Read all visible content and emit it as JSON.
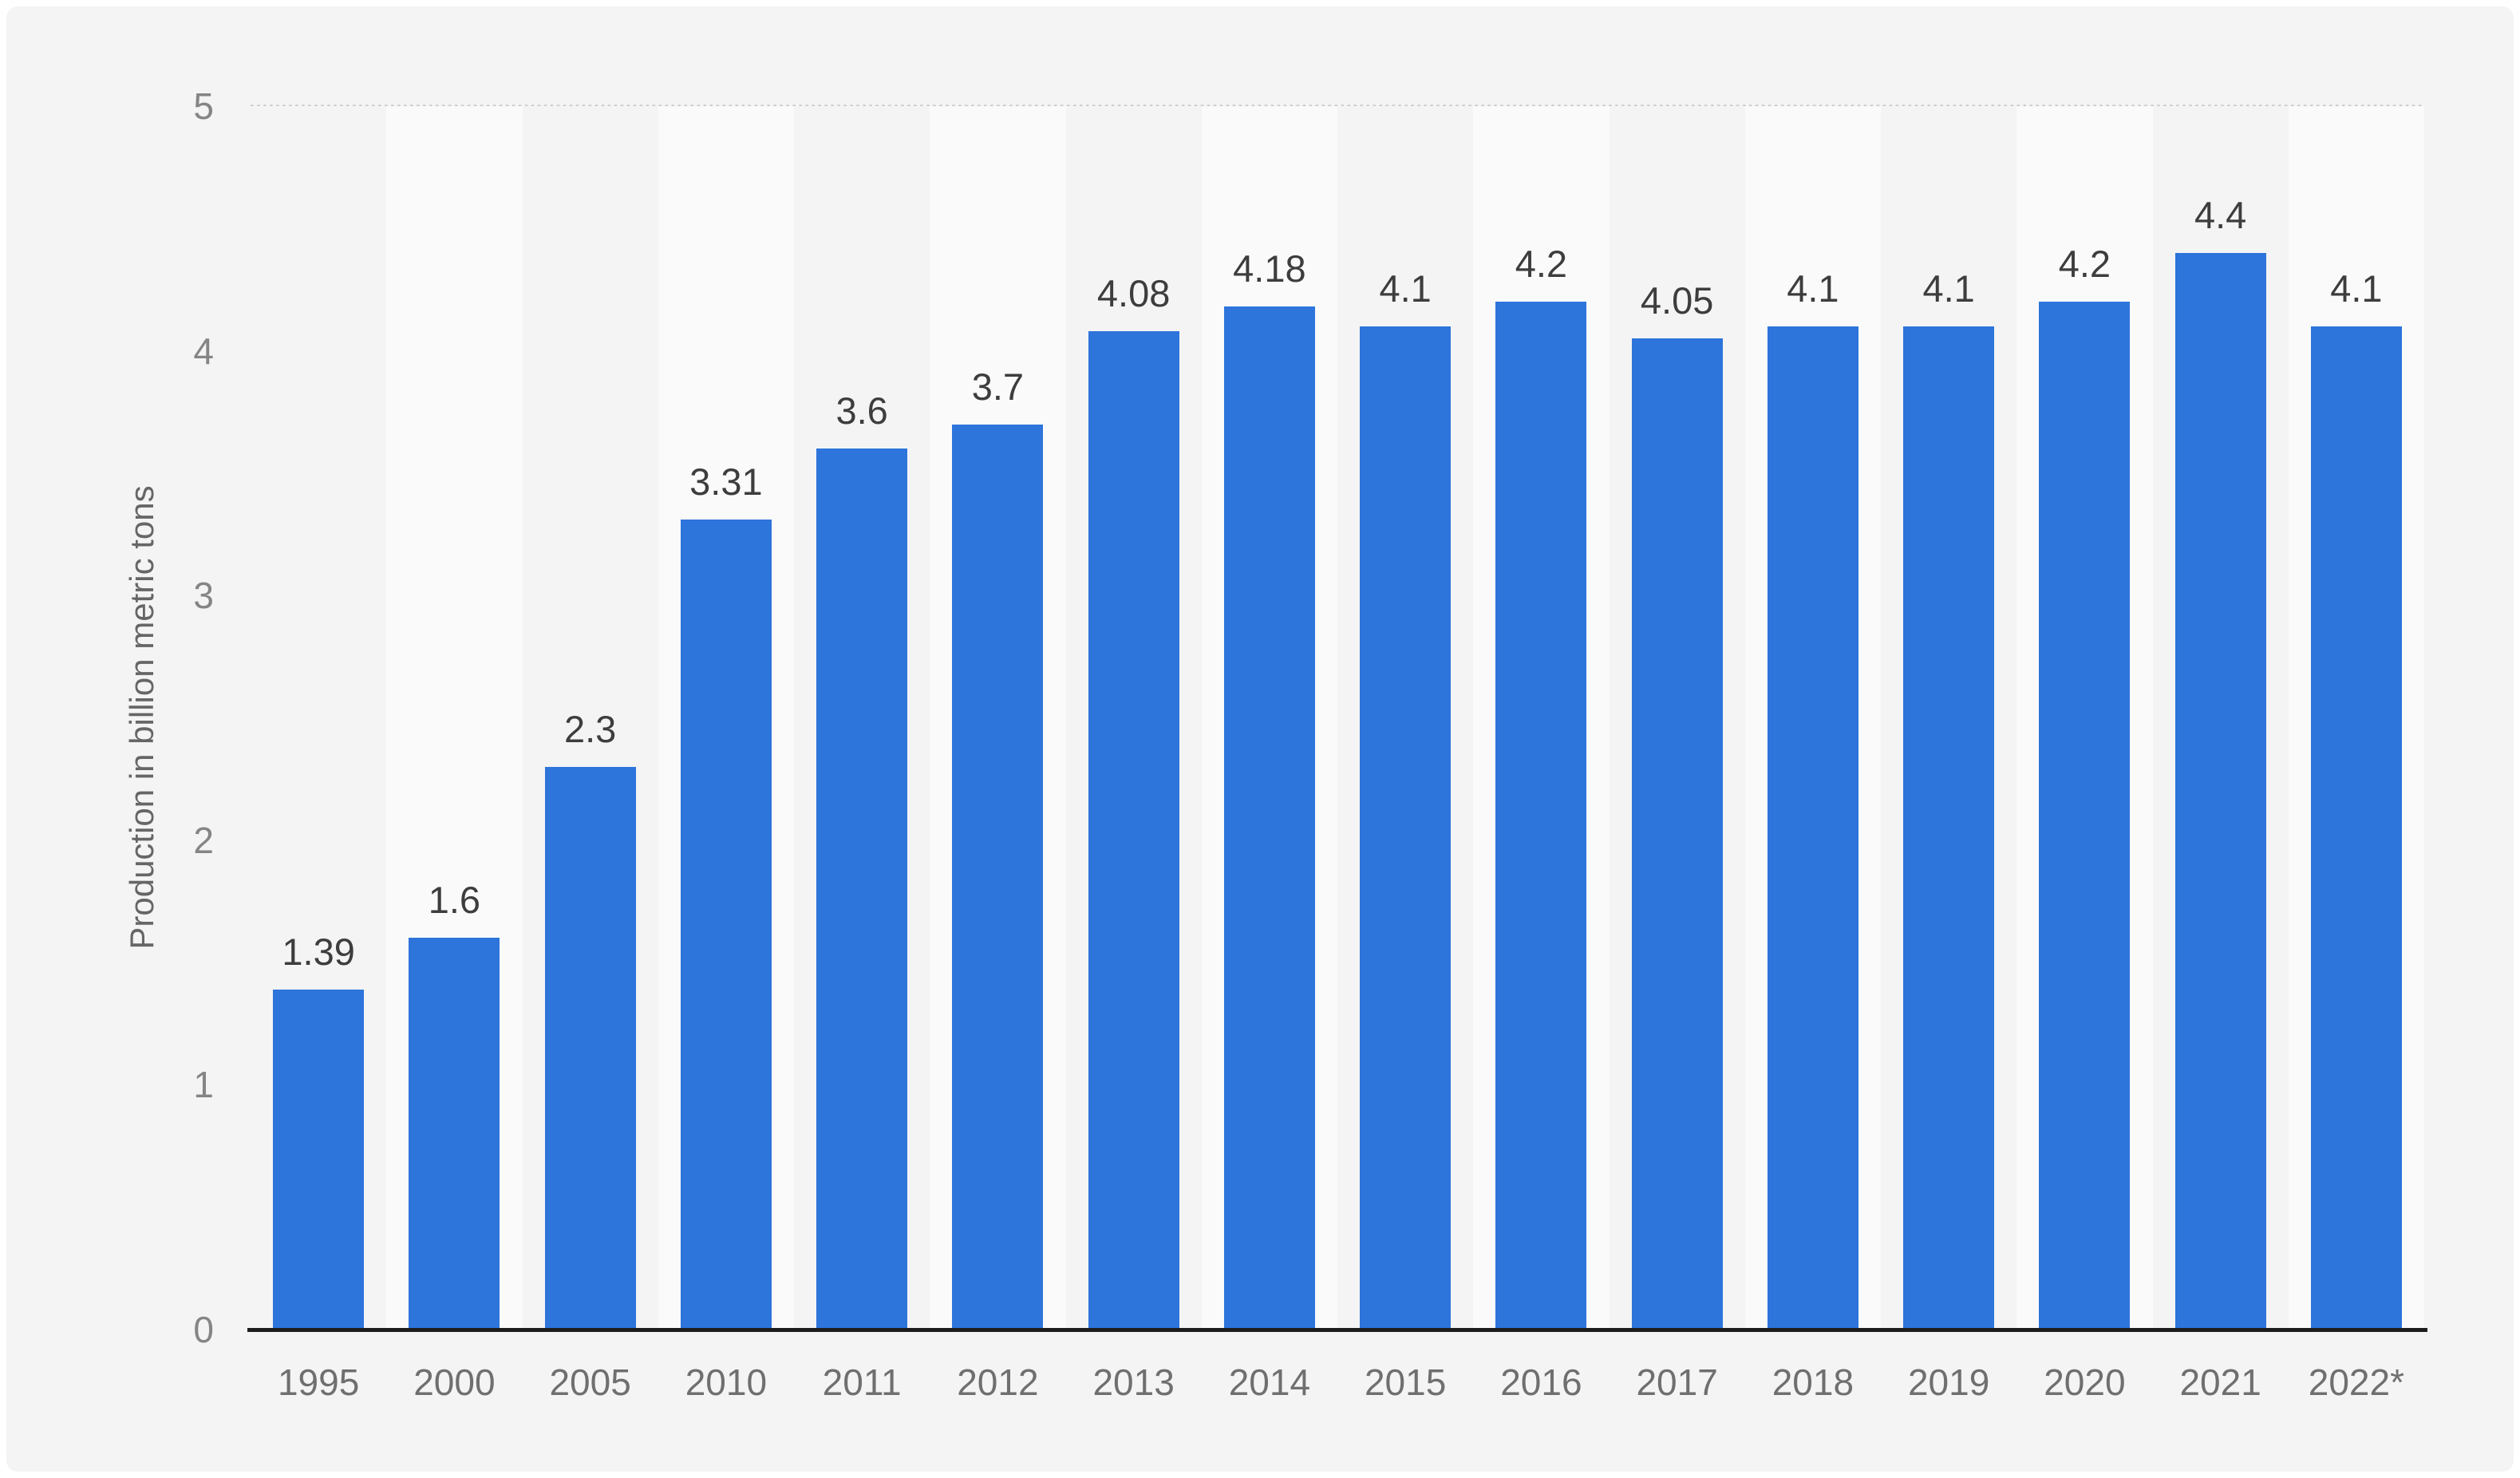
{
  "chart_data": {
    "type": "bar",
    "title": "",
    "xlabel": "",
    "ylabel": "Production in billion metric tons",
    "ylim": [
      0,
      5
    ],
    "yticks": [
      5,
      4,
      3,
      2,
      1,
      0
    ],
    "grid": "horizontal-dotted",
    "legend": "none",
    "categories": [
      "1995",
      "2000",
      "2005",
      "2010",
      "2011",
      "2012",
      "2013",
      "2014",
      "2015",
      "2016",
      "2017",
      "2018",
      "2019",
      "2020",
      "2021",
      "2022*"
    ],
    "values": [
      1.39,
      1.6,
      2.3,
      3.31,
      3.6,
      3.7,
      4.08,
      4.18,
      4.1,
      4.2,
      4.05,
      4.1,
      4.1,
      4.2,
      4.4,
      4.1
    ],
    "value_labels": [
      "1.39",
      "1.6",
      "2.3",
      "3.31",
      "3.6",
      "3.7",
      "4.08",
      "4.18",
      "4.1",
      "4.2",
      "4.05",
      "4.1",
      "4.1",
      "4.2",
      "4.4",
      "4.1"
    ],
    "colors": {
      "bar": "#2D74DB",
      "card_background": "#f4f4f5",
      "plot_band_even": "#f4f4f5",
      "plot_band_odd": "#fafafa",
      "gridline": "#cbcbcb",
      "axis_line": "#1d1d1d",
      "value_label_text": "#3d3d3d",
      "tick_label_text": "#858585",
      "x_label_text": "#6f6f6f",
      "y_title_text": "#666666"
    }
  }
}
